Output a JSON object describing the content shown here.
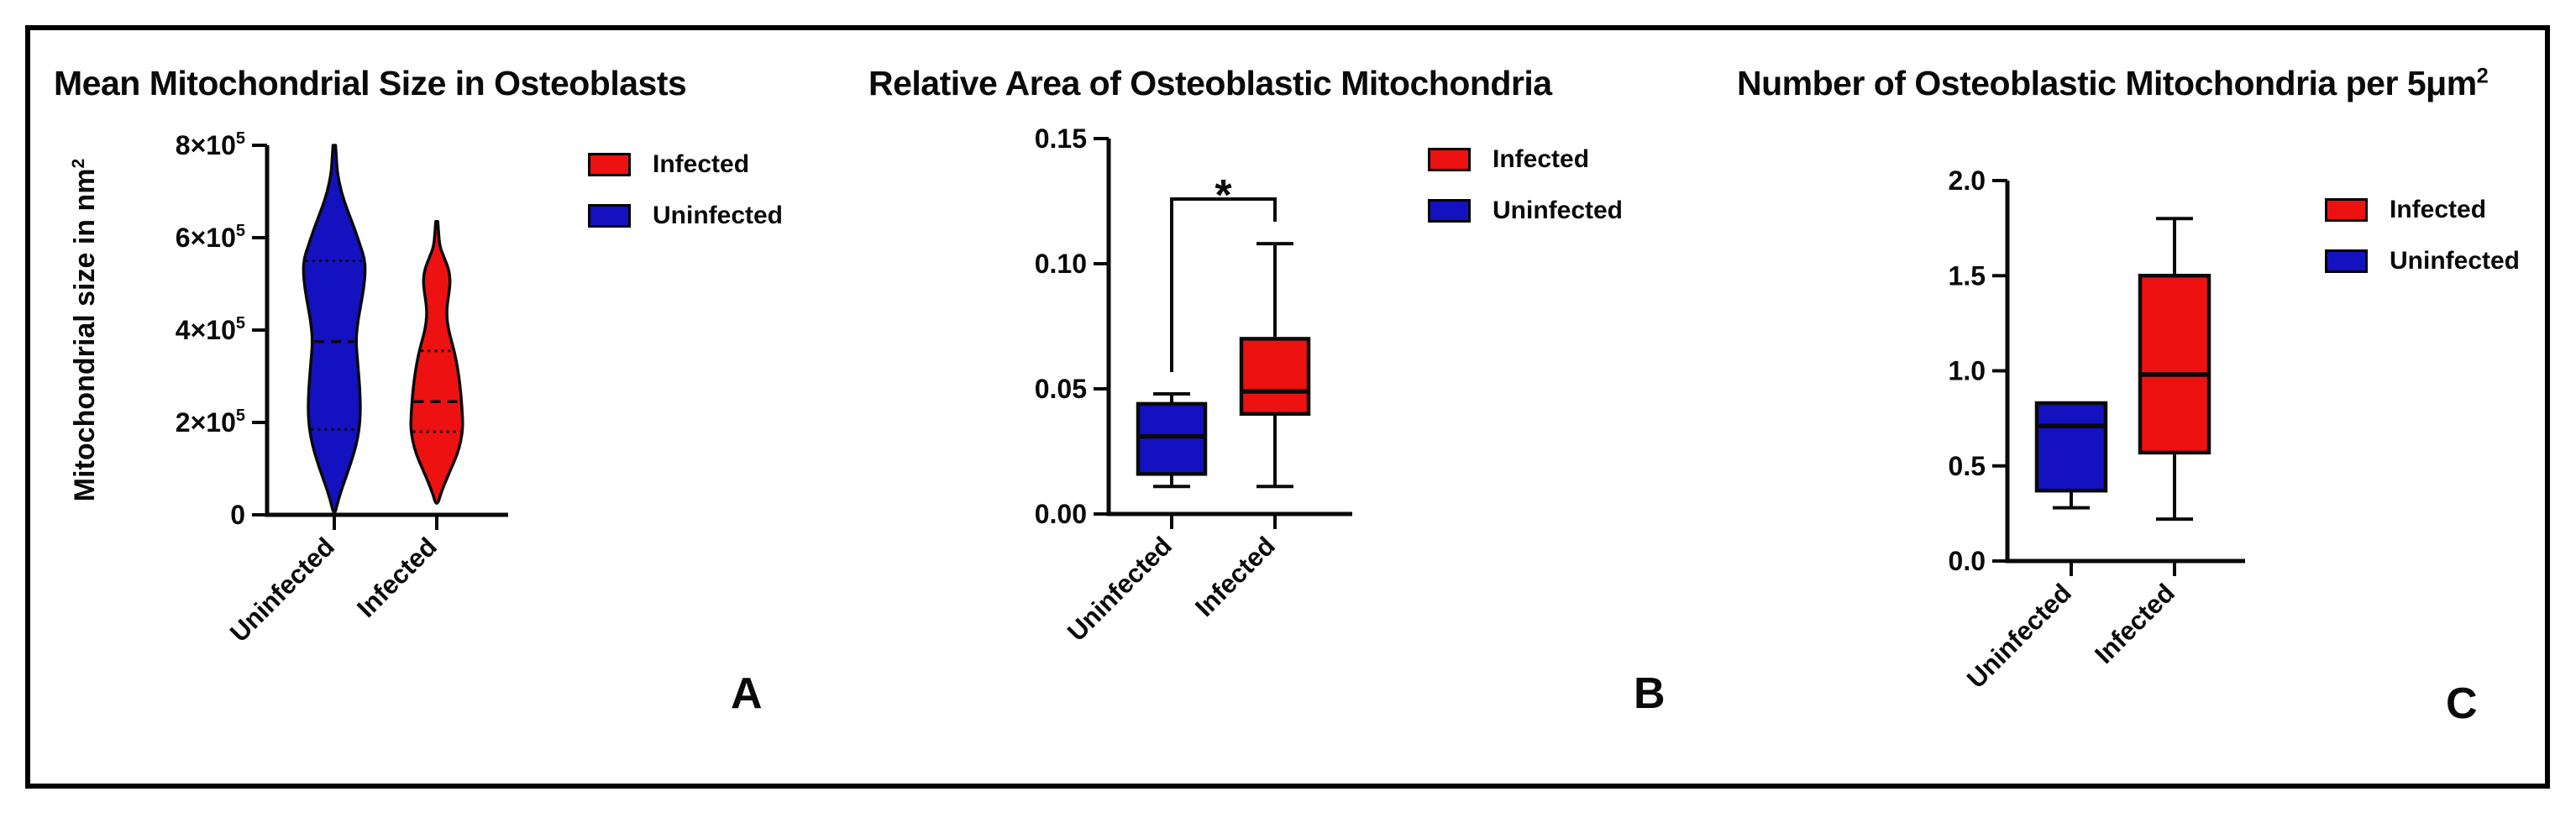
{
  "figure": {
    "background": "#ffffff",
    "border_color": "#000000"
  },
  "colors": {
    "infected": "#ee1111",
    "uninfected": "#1411c1",
    "line": "#0a0a0a"
  },
  "legend": {
    "entries": [
      {
        "label": "Infected",
        "color": "#ee1111"
      },
      {
        "label": "Uninfected",
        "color": "#1411c1"
      }
    ]
  },
  "chart_data": [
    {
      "type": "violin",
      "panel_label": "A",
      "title": "Mean Mitochondrial Size in Osteoblasts",
      "ylabel": "Mitochondrial size in nm",
      "ylabel_sup": "2",
      "ylim": [
        0,
        800000
      ],
      "grid": false,
      "legend_position": "right",
      "yticks": [
        {
          "v": 0,
          "label": "0"
        },
        {
          "v": 200000,
          "label": "2×10",
          "sup": "5"
        },
        {
          "v": 400000,
          "label": "4×10",
          "sup": "5"
        },
        {
          "v": 600000,
          "label": "6×10",
          "sup": "5"
        },
        {
          "v": 800000,
          "label": "8×10",
          "sup": "5"
        }
      ],
      "categories": [
        "Uninfected",
        "Infected"
      ],
      "series": [
        {
          "name": "Uninfected",
          "color_key": "uninfected",
          "min": 0,
          "q1": 185000,
          "median": 375000,
          "q3": 550000,
          "max": 800000,
          "profile": [
            [
              800000,
              0.04
            ],
            [
              770000,
              0.07
            ],
            [
              740000,
              0.1
            ],
            [
              700000,
              0.22
            ],
            [
              660000,
              0.42
            ],
            [
              620000,
              0.65
            ],
            [
              580000,
              0.85
            ],
            [
              555000,
              0.97
            ],
            [
              530000,
              1.0
            ],
            [
              490000,
              0.95
            ],
            [
              450000,
              0.84
            ],
            [
              410000,
              0.74
            ],
            [
              375000,
              0.7
            ],
            [
              340000,
              0.74
            ],
            [
              300000,
              0.79
            ],
            [
              260000,
              0.83
            ],
            [
              220000,
              0.84
            ],
            [
              185000,
              0.8
            ],
            [
              150000,
              0.7
            ],
            [
              120000,
              0.57
            ],
            [
              90000,
              0.42
            ],
            [
              60000,
              0.26
            ],
            [
              30000,
              0.12
            ],
            [
              5000,
              0.03
            ]
          ]
        },
        {
          "name": "Infected",
          "color_key": "infected",
          "min": 20000,
          "q1": 180000,
          "median": 245000,
          "q3": 355000,
          "max": 635000,
          "profile": [
            [
              635000,
              0.04
            ],
            [
              610000,
              0.07
            ],
            [
              580000,
              0.12
            ],
            [
              555000,
              0.3
            ],
            [
              530000,
              0.47
            ],
            [
              505000,
              0.52
            ],
            [
              480000,
              0.47
            ],
            [
              455000,
              0.4
            ],
            [
              430000,
              0.38
            ],
            [
              400000,
              0.45
            ],
            [
              370000,
              0.6
            ],
            [
              340000,
              0.73
            ],
            [
              300000,
              0.85
            ],
            [
              260000,
              0.93
            ],
            [
              220000,
              0.98
            ],
            [
              190000,
              1.0
            ],
            [
              160000,
              0.93
            ],
            [
              130000,
              0.78
            ],
            [
              100000,
              0.55
            ],
            [
              70000,
              0.32
            ],
            [
              45000,
              0.15
            ],
            [
              25000,
              0.05
            ]
          ]
        }
      ]
    },
    {
      "type": "box",
      "panel_label": "B",
      "title": "Relative Area of Osteoblastic Mitochondria",
      "ylim": [
        0,
        0.15
      ],
      "grid": false,
      "legend_position": "right",
      "yticks": [
        {
          "v": 0.0,
          "label": "0.00"
        },
        {
          "v": 0.05,
          "label": "0.05"
        },
        {
          "v": 0.1,
          "label": "0.10"
        },
        {
          "v": 0.15,
          "label": "0.15"
        }
      ],
      "categories": [
        "Uninfected",
        "Infected"
      ],
      "series": [
        {
          "name": "Uninfected",
          "color_key": "uninfected",
          "min": 0.011,
          "q1": 0.016,
          "median": 0.031,
          "q3": 0.044,
          "max": 0.048
        },
        {
          "name": "Infected",
          "color_key": "infected",
          "min": 0.011,
          "q1": 0.04,
          "median": 0.049,
          "q3": 0.07,
          "max": 0.108
        }
      ],
      "significance": {
        "label": "*",
        "groups": [
          "Uninfected",
          "Infected"
        ]
      }
    },
    {
      "type": "box",
      "panel_label": "C",
      "title": "Number of Osteoblastic Mitochondria per 5μm",
      "title_sup": "2",
      "ylim": [
        0,
        2.0
      ],
      "grid": false,
      "legend_position": "right",
      "yticks": [
        {
          "v": 0.0,
          "label": "0.0"
        },
        {
          "v": 0.5,
          "label": "0.5"
        },
        {
          "v": 1.0,
          "label": "1.0"
        },
        {
          "v": 1.5,
          "label": "1.5"
        },
        {
          "v": 2.0,
          "label": "2.0"
        }
      ],
      "categories": [
        "Uninfected",
        "Infected"
      ],
      "series": [
        {
          "name": "Uninfected",
          "color_key": "uninfected",
          "min": 0.28,
          "q1": 0.37,
          "median": 0.71,
          "q3": 0.83,
          "max": 0.83
        },
        {
          "name": "Infected",
          "color_key": "infected",
          "min": 0.22,
          "q1": 0.57,
          "median": 0.98,
          "q3": 1.5,
          "max": 1.8
        }
      ]
    }
  ]
}
